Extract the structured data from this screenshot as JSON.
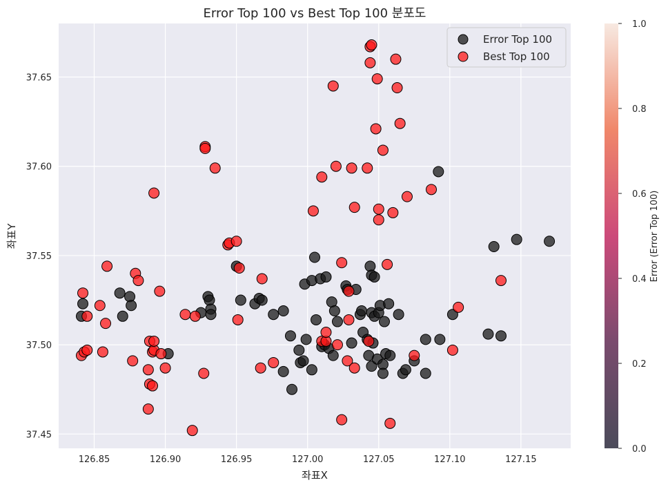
{
  "chart_data": {
    "type": "scatter",
    "title": "Error Top 100 vs Best Top 100 분포도",
    "xlabel": "좌표X",
    "ylabel": "좌표Y",
    "xlim": [
      126.825,
      127.185
    ],
    "ylim": [
      37.442,
      37.68
    ],
    "xticks": [
      "126.85",
      "126.90",
      "126.95",
      "127.00",
      "127.05",
      "127.10",
      "127.15"
    ],
    "yticks": [
      "37.45",
      "37.50",
      "37.55",
      "37.60",
      "37.65"
    ],
    "grid": true,
    "legend_position": "top-right",
    "colorbar": {
      "label": "Error (Error Top 100)",
      "ticks": [
        "0.0",
        "0.2",
        "0.4",
        "0.6",
        "0.8",
        "1.0"
      ],
      "range": [
        0,
        1
      ]
    },
    "series": [
      {
        "name": "Error Top 100",
        "color": "#1a1a1a",
        "points": [
          [
            126.842,
            37.523
          ],
          [
            126.841,
            37.516
          ],
          [
            126.868,
            37.529
          ],
          [
            126.87,
            37.516
          ],
          [
            126.875,
            37.527
          ],
          [
            126.876,
            37.522
          ],
          [
            126.902,
            37.495
          ],
          [
            126.925,
            37.518
          ],
          [
            126.93,
            37.527
          ],
          [
            126.931,
            37.525
          ],
          [
            126.932,
            37.52
          ],
          [
            126.932,
            37.517
          ],
          [
            126.95,
            37.544
          ],
          [
            126.953,
            37.525
          ],
          [
            126.963,
            37.523
          ],
          [
            126.966,
            37.526
          ],
          [
            126.968,
            37.525
          ],
          [
            126.976,
            37.517
          ],
          [
            126.983,
            37.519
          ],
          [
            126.983,
            37.485
          ],
          [
            126.989,
            37.475
          ],
          [
            126.988,
            37.505
          ],
          [
            126.994,
            37.497
          ],
          [
            126.995,
            37.49
          ],
          [
            126.997,
            37.491
          ],
          [
            126.998,
            37.534
          ],
          [
            126.999,
            37.503
          ],
          [
            127.003,
            37.536
          ],
          [
            127.005,
            37.549
          ],
          [
            127.006,
            37.514
          ],
          [
            127.003,
            37.486
          ],
          [
            127.009,
            37.537
          ],
          [
            127.01,
            37.499
          ],
          [
            127.012,
            37.5
          ],
          [
            127.013,
            37.538
          ],
          [
            127.015,
            37.498
          ],
          [
            127.017,
            37.524
          ],
          [
            127.019,
            37.519
          ],
          [
            127.018,
            37.494
          ],
          [
            127.021,
            37.513
          ],
          [
            127.027,
            37.533
          ],
          [
            127.028,
            37.531
          ],
          [
            127.031,
            37.501
          ],
          [
            127.034,
            37.531
          ],
          [
            127.037,
            37.517
          ],
          [
            127.038,
            37.519
          ],
          [
            127.039,
            37.507
          ],
          [
            127.042,
            37.503
          ],
          [
            127.043,
            37.494
          ],
          [
            127.044,
            37.544
          ],
          [
            127.045,
            37.539
          ],
          [
            127.045,
            37.518
          ],
          [
            127.046,
            37.501
          ],
          [
            127.045,
            37.488
          ],
          [
            127.047,
            37.538
          ],
          [
            127.047,
            37.516
          ],
          [
            127.049,
            37.492
          ],
          [
            127.05,
            37.518
          ],
          [
            127.051,
            37.522
          ],
          [
            127.054,
            37.513
          ],
          [
            127.053,
            37.489
          ],
          [
            127.053,
            37.484
          ],
          [
            127.055,
            37.495
          ],
          [
            127.057,
            37.523
          ],
          [
            127.058,
            37.494
          ],
          [
            127.064,
            37.517
          ],
          [
            127.067,
            37.484
          ],
          [
            127.069,
            37.486
          ],
          [
            127.075,
            37.491
          ],
          [
            127.083,
            37.503
          ],
          [
            127.083,
            37.484
          ],
          [
            127.092,
            37.597
          ],
          [
            127.093,
            37.503
          ],
          [
            127.102,
            37.517
          ],
          [
            127.127,
            37.506
          ],
          [
            127.131,
            37.555
          ],
          [
            127.136,
            37.505
          ],
          [
            127.147,
            37.559
          ],
          [
            127.17,
            37.558
          ]
        ]
      },
      {
        "name": "Best Top 100",
        "color": "#ff1a1a",
        "points": [
          [
            126.841,
            37.494
          ],
          [
            126.842,
            37.529
          ],
          [
            126.843,
            37.496
          ],
          [
            126.845,
            37.497
          ],
          [
            126.845,
            37.516
          ],
          [
            126.854,
            37.522
          ],
          [
            126.856,
            37.496
          ],
          [
            126.858,
            37.512
          ],
          [
            126.859,
            37.544
          ],
          [
            126.877,
            37.491
          ],
          [
            126.879,
            37.54
          ],
          [
            126.881,
            37.536
          ],
          [
            126.888,
            37.486
          ],
          [
            126.888,
            37.464
          ],
          [
            126.889,
            37.502
          ],
          [
            126.889,
            37.478
          ],
          [
            126.891,
            37.477
          ],
          [
            126.891,
            37.496
          ],
          [
            126.892,
            37.497
          ],
          [
            126.892,
            37.502
          ],
          [
            126.892,
            37.585
          ],
          [
            126.896,
            37.53
          ],
          [
            126.897,
            37.495
          ],
          [
            126.9,
            37.487
          ],
          [
            126.914,
            37.517
          ],
          [
            126.919,
            37.452
          ],
          [
            126.921,
            37.516
          ],
          [
            126.927,
            37.484
          ],
          [
            126.928,
            37.611
          ],
          [
            126.928,
            37.61
          ],
          [
            126.935,
            37.599
          ],
          [
            126.944,
            37.556
          ],
          [
            126.945,
            37.557
          ],
          [
            126.95,
            37.558
          ],
          [
            126.951,
            37.514
          ],
          [
            126.952,
            37.543
          ],
          [
            126.967,
            37.487
          ],
          [
            126.968,
            37.537
          ],
          [
            126.976,
            37.49
          ],
          [
            127.004,
            37.575
          ],
          [
            127.01,
            37.594
          ],
          [
            127.01,
            37.502
          ],
          [
            127.013,
            37.502
          ],
          [
            127.013,
            37.507
          ],
          [
            127.018,
            37.645
          ],
          [
            127.02,
            37.6
          ],
          [
            127.021,
            37.5
          ],
          [
            127.024,
            37.458
          ],
          [
            127.024,
            37.546
          ],
          [
            127.028,
            37.491
          ],
          [
            127.029,
            37.53
          ],
          [
            127.029,
            37.514
          ],
          [
            127.031,
            37.599
          ],
          [
            127.033,
            37.577
          ],
          [
            127.033,
            37.487
          ],
          [
            127.042,
            37.599
          ],
          [
            127.043,
            37.502
          ],
          [
            127.044,
            37.667
          ],
          [
            127.044,
            37.658
          ],
          [
            127.045,
            37.668
          ],
          [
            127.048,
            37.621
          ],
          [
            127.049,
            37.649
          ],
          [
            127.05,
            37.576
          ],
          [
            127.05,
            37.57
          ],
          [
            127.053,
            37.609
          ],
          [
            127.056,
            37.545
          ],
          [
            127.058,
            37.456
          ],
          [
            127.06,
            37.574
          ],
          [
            127.062,
            37.66
          ],
          [
            127.063,
            37.644
          ],
          [
            127.065,
            37.624
          ],
          [
            127.07,
            37.583
          ],
          [
            127.075,
            37.494
          ],
          [
            127.087,
            37.587
          ],
          [
            127.102,
            37.497
          ],
          [
            127.106,
            37.521
          ],
          [
            127.136,
            37.536
          ]
        ]
      }
    ]
  }
}
